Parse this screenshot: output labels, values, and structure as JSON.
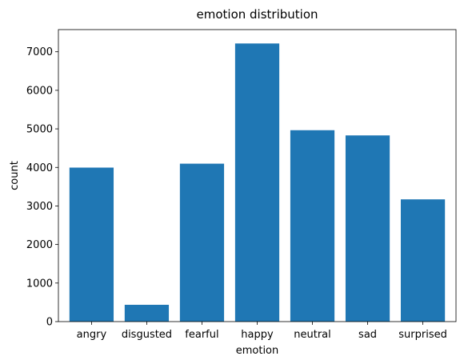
{
  "chart_data": {
    "type": "bar",
    "title": "emotion distribution",
    "xlabel": "emotion",
    "ylabel": "count",
    "categories": [
      "angry",
      "disgusted",
      "fearful",
      "happy",
      "neutral",
      "sad",
      "surprised"
    ],
    "values": [
      3995,
      436,
      4097,
      7215,
      4965,
      4830,
      3171
    ],
    "ylim": [
      0,
      7575
    ],
    "yticks": [
      0,
      1000,
      2000,
      3000,
      4000,
      5000,
      6000,
      7000
    ],
    "bar_color": "#1f77b4",
    "grid": false,
    "legend": "none"
  }
}
